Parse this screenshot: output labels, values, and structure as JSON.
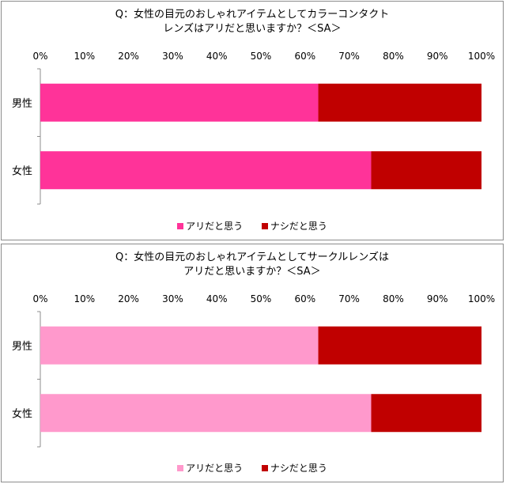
{
  "chart_data": [
    {
      "type": "bar",
      "orientation": "horizontal",
      "stacked": "percent",
      "title_lines": [
        "Q：女性の目元のおしゃれアイテムとしてカラーコンタクト",
        "レンズはアリだと思いますか？＜SA＞"
      ],
      "categories": [
        "男性",
        "女性"
      ],
      "series": [
        {
          "name": "アリだと思う",
          "values": [
            63,
            75
          ],
          "color": "#ff3399"
        },
        {
          "name": "ナシだと思う",
          "values": [
            37,
            25
          ],
          "color": "#c00000"
        }
      ],
      "xlim": [
        0,
        100
      ],
      "xticks": [
        "0%",
        "10%",
        "20%",
        "30%",
        "40%",
        "50%",
        "60%",
        "70%",
        "80%",
        "90%",
        "100%"
      ],
      "legend_position": "bottom"
    },
    {
      "type": "bar",
      "orientation": "horizontal",
      "stacked": "percent",
      "title_lines": [
        "Q：女性の目元のおしゃれアイテムとしてサークルレンズは",
        "アリだと思いますか？＜SA＞"
      ],
      "categories": [
        "男性",
        "女性"
      ],
      "series": [
        {
          "name": "アリだと思う",
          "values": [
            63,
            75
          ],
          "color": "#ff99cc"
        },
        {
          "name": "ナシだと思う",
          "values": [
            37,
            25
          ],
          "color": "#c00000"
        }
      ],
      "xlim": [
        0,
        100
      ],
      "xticks": [
        "0%",
        "10%",
        "20%",
        "30%",
        "40%",
        "50%",
        "60%",
        "70%",
        "80%",
        "90%",
        "100%"
      ],
      "legend_position": "bottom"
    }
  ]
}
